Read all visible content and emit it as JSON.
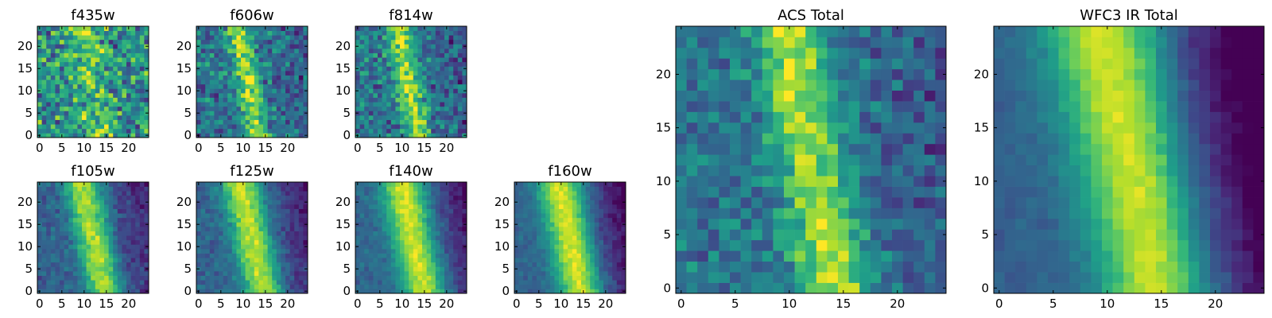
{
  "colormap": "viridis",
  "colormap_stops": [
    "#440154",
    "#482878",
    "#3e4989",
    "#31688e",
    "#26828e",
    "#1f9e89",
    "#35b779",
    "#6ece58",
    "#b5de2b",
    "#fde725"
  ],
  "chart_data": [
    {
      "type": "heatmap",
      "title": "f435w",
      "grid_size": 25,
      "x_ticks": [
        "0",
        "5",
        "10",
        "15",
        "20"
      ],
      "y_ticks": [
        "0",
        "5",
        "10",
        "15",
        "20"
      ],
      "structure": {
        "type": "noisy",
        "band_center": 11,
        "band_slope": -0.13,
        "band_width": 3.5,
        "band_strength": 0.25,
        "noise": 0.42,
        "base": 0.52,
        "right_fade": 0.05,
        "seed": 11
      }
    },
    {
      "type": "heatmap",
      "title": "f606w",
      "grid_size": 25,
      "x_ticks": [
        "0",
        "5",
        "10",
        "15",
        "20"
      ],
      "y_ticks": [
        "0",
        "5",
        "10",
        "15",
        "20"
      ],
      "structure": {
        "type": "diagonal-band",
        "band_center": 10,
        "band_slope": -0.19,
        "band_width": 2.5,
        "band_strength": 0.5,
        "noise": 0.3,
        "base": 0.38,
        "right_fade": 0.1,
        "seed": 23
      }
    },
    {
      "type": "heatmap",
      "title": "f814w",
      "grid_size": 25,
      "x_ticks": [
        "0",
        "5",
        "10",
        "15",
        "20"
      ],
      "y_ticks": [
        "0",
        "5",
        "10",
        "15",
        "20"
      ],
      "structure": {
        "type": "diagonal-band",
        "band_center": 10.5,
        "band_slope": -0.19,
        "band_width": 2.7,
        "band_strength": 0.52,
        "noise": 0.3,
        "base": 0.38,
        "right_fade": 0.12,
        "seed": 37
      }
    },
    {
      "type": "heatmap",
      "title": "f105w",
      "grid_size": 25,
      "x_ticks": [
        "0",
        "5",
        "10",
        "15",
        "20"
      ],
      "y_ticks": [
        "0",
        "5",
        "10",
        "15",
        "20"
      ],
      "structure": {
        "type": "diagonal-band",
        "band_center": 11,
        "band_slope": -0.22,
        "band_width": 4,
        "band_strength": 0.58,
        "noise": 0.14,
        "base": 0.3,
        "right_fade": 0.22,
        "seed": 41
      }
    },
    {
      "type": "heatmap",
      "title": "f125w",
      "grid_size": 25,
      "x_ticks": [
        "0",
        "5",
        "10",
        "15",
        "20"
      ],
      "y_ticks": [
        "0",
        "5",
        "10",
        "15",
        "20"
      ],
      "structure": {
        "type": "diagonal-band",
        "band_center": 11,
        "band_slope": -0.22,
        "band_width": 4.3,
        "band_strength": 0.58,
        "noise": 0.12,
        "base": 0.32,
        "right_fade": 0.25,
        "seed": 53
      }
    },
    {
      "type": "heatmap",
      "title": "f140w",
      "grid_size": 25,
      "x_ticks": [
        "0",
        "5",
        "10",
        "15",
        "20"
      ],
      "y_ticks": [
        "0",
        "5",
        "10",
        "15",
        "20"
      ],
      "structure": {
        "type": "diagonal-band",
        "band_center": 11.5,
        "band_slope": -0.22,
        "band_width": 4.8,
        "band_strength": 0.6,
        "noise": 0.1,
        "base": 0.33,
        "right_fade": 0.3,
        "seed": 67
      }
    },
    {
      "type": "heatmap",
      "title": "f160w",
      "grid_size": 25,
      "x_ticks": [
        "0",
        "5",
        "10",
        "15",
        "20"
      ],
      "y_ticks": [
        "0",
        "5",
        "10",
        "15",
        "20"
      ],
      "structure": {
        "type": "diagonal-band",
        "band_center": 11,
        "band_slope": -0.22,
        "band_width": 4.8,
        "band_strength": 0.62,
        "noise": 0.09,
        "base": 0.32,
        "right_fade": 0.34,
        "seed": 79
      }
    },
    {
      "type": "heatmap",
      "title": "ACS Total",
      "grid_size": 25,
      "x_ticks": [
        "0",
        "5",
        "10",
        "15",
        "20"
      ],
      "y_ticks": [
        "0",
        "5",
        "10",
        "15",
        "20"
      ],
      "structure": {
        "type": "diagonal-band",
        "band_center": 11,
        "band_slope": -0.2,
        "band_width": 3.2,
        "band_strength": 0.5,
        "noise": 0.22,
        "base": 0.38,
        "right_fade": 0.12,
        "seed": 97
      }
    },
    {
      "type": "heatmap",
      "title": "WFC3 IR Total",
      "grid_size": 25,
      "x_ticks": [
        "0",
        "5",
        "10",
        "15",
        "20"
      ],
      "y_ticks": [
        "0",
        "5",
        "10",
        "15",
        "20"
      ],
      "structure": {
        "type": "diagonal-band",
        "band_center": 11,
        "band_slope": -0.22,
        "band_width": 5.2,
        "band_strength": 0.62,
        "noise": 0.06,
        "base": 0.3,
        "right_fade": 0.45,
        "seed": 113
      }
    }
  ]
}
